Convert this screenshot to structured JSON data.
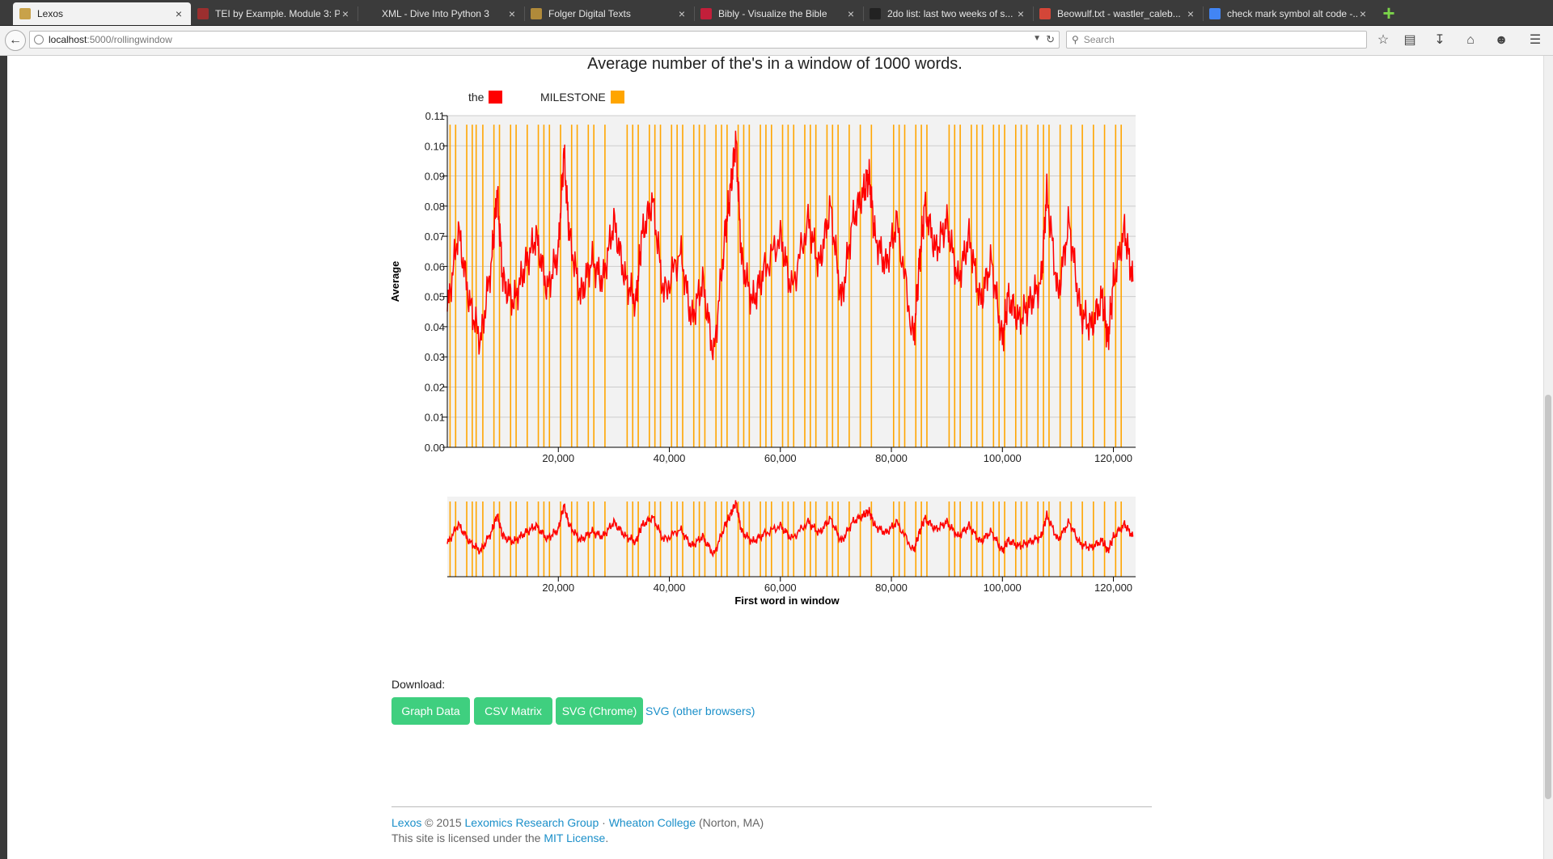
{
  "browser": {
    "tabs": [
      {
        "label": "Lexos",
        "favicon": "lexos-icon",
        "color": "#c8a24a",
        "active": true
      },
      {
        "label": "TEI by Example. Module 3: P...",
        "favicon": "tei-icon",
        "color": "#9b2f2f",
        "active": false
      },
      {
        "label": "XML - Dive Into Python 3",
        "favicon": "",
        "color": "",
        "active": false
      },
      {
        "label": "Folger Digital Texts",
        "favicon": "folger-icon",
        "color": "#b08a3a",
        "active": false
      },
      {
        "label": "Bibly - Visualize the Bible",
        "favicon": "bibly-icon",
        "color": "#c21f3a",
        "active": false
      },
      {
        "label": "2do list: last two weeks of s...",
        "favicon": "github-icon",
        "color": "#222222",
        "active": false
      },
      {
        "label": "Beowulf.txt - wastler_caleb...",
        "favicon": "gmail-icon",
        "color": "#d44638",
        "active": false
      },
      {
        "label": "check mark symbol alt code -...",
        "favicon": "google-icon",
        "color": "#4285f4",
        "active": false
      }
    ],
    "url_host": "localhost",
    "url_path": ":5000/rollingwindow",
    "search_placeholder": "Search"
  },
  "chart_title": "Average number of the's in a window of 1000 words.",
  "legend": [
    {
      "label": "the",
      "color": "#ff0000"
    },
    {
      "label": "MILESTONE",
      "color": "#ffa500"
    }
  ],
  "chart_data": {
    "type": "line",
    "title": "Average number of the's in a window of 1000 words.",
    "ylabel": "Average",
    "xlabel": "First word in window",
    "ylim": [
      0,
      0.11
    ],
    "xlim": [
      0,
      124000
    ],
    "yticks": [
      "0.00",
      "0.01",
      "0.02",
      "0.03",
      "0.04",
      "0.05",
      "0.06",
      "0.07",
      "0.08",
      "0.09",
      "0.10",
      "0.11"
    ],
    "xticks": [
      "20,000",
      "40,000",
      "60,000",
      "80,000",
      "100,000",
      "120,000"
    ],
    "xtick_values": [
      20000,
      40000,
      60000,
      80000,
      100000,
      120000
    ],
    "grid": "horizontal",
    "series": [
      {
        "name": "the",
        "color": "#ff0000",
        "x": [
          0,
          2000,
          4000,
          6000,
          8000,
          9000,
          10000,
          12000,
          14000,
          16000,
          18000,
          20000,
          21000,
          22000,
          24000,
          26000,
          28000,
          30000,
          32000,
          34000,
          35000,
          37000,
          39000,
          42000,
          44000,
          46000,
          48000,
          50000,
          51000,
          52000,
          53000,
          55000,
          57000,
          60000,
          62000,
          65000,
          67000,
          69000,
          71000,
          73000,
          75000,
          76000,
          77000,
          79000,
          81000,
          84000,
          85000,
          86000,
          88000,
          90000,
          92000,
          94000,
          96000,
          98000,
          100000,
          101000,
          103000,
          105000,
          107000,
          108000,
          110000,
          112000,
          114000,
          116000,
          118000,
          119000,
          120000,
          122000,
          123500
        ],
        "y": [
          0.045,
          0.072,
          0.048,
          0.035,
          0.062,
          0.085,
          0.055,
          0.048,
          0.06,
          0.07,
          0.052,
          0.065,
          0.098,
          0.07,
          0.05,
          0.062,
          0.055,
          0.075,
          0.056,
          0.048,
          0.07,
          0.082,
          0.05,
          0.065,
          0.042,
          0.055,
          0.03,
          0.07,
          0.085,
          0.102,
          0.062,
          0.048,
          0.058,
          0.07,
          0.052,
          0.075,
          0.06,
          0.08,
          0.048,
          0.075,
          0.085,
          0.09,
          0.07,
          0.06,
          0.075,
          0.035,
          0.06,
          0.08,
          0.065,
          0.075,
          0.055,
          0.07,
          0.048,
          0.062,
          0.035,
          0.05,
          0.042,
          0.048,
          0.055,
          0.085,
          0.05,
          0.075,
          0.045,
          0.04,
          0.05,
          0.035,
          0.055,
          0.072,
          0.055
        ]
      },
      {
        "name": "MILESTONE",
        "color": "#ffa500",
        "x": [
          500,
          1500,
          3500,
          4500,
          5200,
          6400,
          8400,
          9400,
          11400,
          12400,
          14400,
          16400,
          17400,
          18400,
          20400,
          22400,
          23400,
          25400,
          26400,
          28400,
          32400,
          33400,
          34400,
          36400,
          37400,
          38400,
          40400,
          41400,
          42400,
          44400,
          45400,
          46400,
          48400,
          49400,
          50400,
          52400,
          53400,
          54400,
          56400,
          57400,
          58400,
          60400,
          61400,
          62400,
          64400,
          65400,
          66400,
          68400,
          69400,
          70400,
          72400,
          74400,
          76400,
          80400,
          81400,
          82400,
          84400,
          85400,
          86400,
          90400,
          91400,
          92400,
          94400,
          95400,
          96400,
          98400,
          99400,
          100400,
          102400,
          103400,
          104400,
          106400,
          107400,
          108400,
          110400,
          112400,
          114400,
          116400,
          118400,
          120400,
          121400
        ]
      }
    ]
  },
  "download": {
    "label": "Download:",
    "buttons": [
      "Graph Data",
      "CSV Matrix",
      "SVG (Chrome)"
    ],
    "link": "SVG (other browsers)"
  },
  "footer": {
    "lexos": "Lexos",
    "copyright": " © 2015 ",
    "group": "Lexomics Research Group",
    "sep": " · ",
    "college": "Wheaton College",
    "place": " (Norton, MA)",
    "license_pre": "This site is licensed under the ",
    "license_link": "MIT License",
    "license_post": "."
  }
}
